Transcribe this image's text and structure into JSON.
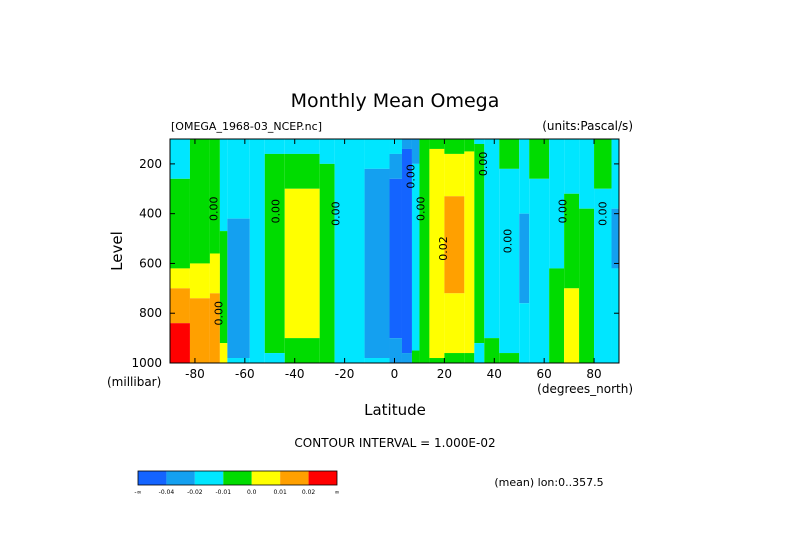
{
  "chart_data": {
    "type": "heatmap",
    "title": "Monthly Mean Omega",
    "subtitle_left": "[OMEGA_1968-03_NCEP.nc]",
    "subtitle_right": "(units:Pascal/s)",
    "xlabel": "Latitude",
    "x_units": "(degrees_north)",
    "ylabel": "Level",
    "y_units": "(millibar)",
    "xlim": [
      -90,
      90
    ],
    "ylim": [
      1000,
      100
    ],
    "xticks": [
      -80,
      -60,
      -40,
      -20,
      0,
      20,
      40,
      60,
      80
    ],
    "xtick_labels": [
      "-80",
      "-60",
      "-40",
      "-20",
      "0",
      "20",
      "40",
      "60",
      "80"
    ],
    "yticks": [
      200,
      400,
      600,
      800,
      1000
    ],
    "ytick_labels": [
      "200",
      "400",
      "600",
      "800",
      "1000"
    ],
    "contour_interval_text": "CONTOUR INTERVAL = 1.000E-02",
    "stats_text": "(mean) lon:0..357.5",
    "contour_labels": [
      {
        "text": "0.00",
        "x": -71,
        "y": 380
      },
      {
        "text": "0.00",
        "x": -46,
        "y": 390
      },
      {
        "text": "0.00",
        "x": -22,
        "y": 400
      },
      {
        "text": "0.00",
        "x": 8,
        "y": 250
      },
      {
        "text": "0.00",
        "x": 12,
        "y": 380
      },
      {
        "text": "0.02",
        "x": 21,
        "y": 540
      },
      {
        "text": "0.00",
        "x": 37,
        "y": 200
      },
      {
        "text": "0.00",
        "x": 47,
        "y": 510
      },
      {
        "text": "0.00",
        "x": 69,
        "y": 390
      },
      {
        "text": "0.00",
        "x": 85,
        "y": 400
      },
      {
        "text": "0.00",
        "x": -69,
        "y": 800
      }
    ],
    "colorbar": {
      "colors": [
        "#1464ff",
        "#14a0f0",
        "#00e6ff",
        "#00dc00",
        "#ffff00",
        "#ffa000",
        "#ff0000"
      ],
      "labels": [
        "-∞",
        "-0.04",
        "-0.02",
        "-0.01",
        "0.0",
        "0.01",
        "0.02",
        "∞"
      ]
    },
    "bands": [
      {
        "lat": [
          -90,
          -82
        ],
        "levels": [
          {
            "p": [
              100,
              260
            ],
            "c": 3
          },
          {
            "p": [
              260,
              620
            ],
            "c": 4
          },
          {
            "p": [
              620,
              700
            ],
            "c": 5
          },
          {
            "p": [
              700,
              840
            ],
            "c": 6
          },
          {
            "p": [
              840,
              1000
            ],
            "c": 7
          }
        ]
      },
      {
        "lat": [
          -82,
          -74
        ],
        "levels": [
          {
            "p": [
              100,
              600
            ],
            "c": 4
          },
          {
            "p": [
              600,
              740
            ],
            "c": 5
          },
          {
            "p": [
              740,
              1000
            ],
            "c": 6
          }
        ]
      },
      {
        "lat": [
          -74,
          -70
        ],
        "levels": [
          {
            "p": [
              100,
              560
            ],
            "c": 4
          },
          {
            "p": [
              560,
              720
            ],
            "c": 5
          },
          {
            "p": [
              720,
              1000
            ],
            "c": 6
          }
        ]
      },
      {
        "lat": [
          -70,
          -67
        ],
        "levels": [
          {
            "p": [
              100,
              470
            ],
            "c": 3
          },
          {
            "p": [
              470,
              920
            ],
            "c": 4
          },
          {
            "p": [
              920,
              1000
            ],
            "c": 5
          }
        ]
      },
      {
        "lat": [
          -67,
          -58
        ],
        "levels": [
          {
            "p": [
              100,
              420
            ],
            "c": 3
          },
          {
            "p": [
              420,
              980
            ],
            "c": 2
          },
          {
            "p": [
              980,
              1000
            ],
            "c": 3
          }
        ]
      },
      {
        "lat": [
          -58,
          -52
        ],
        "levels": [
          {
            "p": [
              100,
              1000
            ],
            "c": 3
          }
        ]
      },
      {
        "lat": [
          -52,
          -44
        ],
        "levels": [
          {
            "p": [
              100,
              160
            ],
            "c": 3
          },
          {
            "p": [
              160,
              960
            ],
            "c": 4
          },
          {
            "p": [
              960,
              1000
            ],
            "c": 3
          }
        ]
      },
      {
        "lat": [
          -44,
          -30
        ],
        "levels": [
          {
            "p": [
              100,
              160
            ],
            "c": 3
          },
          {
            "p": [
              160,
              300
            ],
            "c": 4
          },
          {
            "p": [
              300,
              900
            ],
            "c": 5
          },
          {
            "p": [
              900,
              1000
            ],
            "c": 4
          }
        ]
      },
      {
        "lat": [
          -30,
          -24
        ],
        "levels": [
          {
            "p": [
              100,
              200
            ],
            "c": 3
          },
          {
            "p": [
              200,
              1000
            ],
            "c": 4
          }
        ]
      },
      {
        "lat": [
          -24,
          -12
        ],
        "levels": [
          {
            "p": [
              100,
              1000
            ],
            "c": 3
          }
        ]
      },
      {
        "lat": [
          -12,
          -2
        ],
        "levels": [
          {
            "p": [
              100,
              220
            ],
            "c": 3
          },
          {
            "p": [
              220,
              980
            ],
            "c": 2
          },
          {
            "p": [
              980,
              1000
            ],
            "c": 3
          }
        ]
      },
      {
        "lat": [
          -2,
          3
        ],
        "levels": [
          {
            "p": [
              100,
              160
            ],
            "c": 3
          },
          {
            "p": [
              160,
              260
            ],
            "c": 2
          },
          {
            "p": [
              260,
              900
            ],
            "c": 1
          },
          {
            "p": [
              900,
              1000
            ],
            "c": 2
          }
        ]
      },
      {
        "lat": [
          3,
          7
        ],
        "levels": [
          {
            "p": [
              100,
              140
            ],
            "c": 2
          },
          {
            "p": [
              140,
              960
            ],
            "c": 1
          },
          {
            "p": [
              960,
              1000
            ],
            "c": 2
          }
        ]
      },
      {
        "lat": [
          7,
          10
        ],
        "levels": [
          {
            "p": [
              100,
              200
            ],
            "c": 2
          },
          {
            "p": [
              200,
              950
            ],
            "c": 3
          },
          {
            "p": [
              950,
              1000
            ],
            "c": 4
          }
        ]
      },
      {
        "lat": [
          10,
          14
        ],
        "levels": [
          {
            "p": [
              100,
              1000
            ],
            "c": 4
          }
        ]
      },
      {
        "lat": [
          14,
          20
        ],
        "levels": [
          {
            "p": [
              100,
              140
            ],
            "c": 4
          },
          {
            "p": [
              140,
              980
            ],
            "c": 5
          },
          {
            "p": [
              980,
              1000
            ],
            "c": 4
          }
        ]
      },
      {
        "lat": [
          20,
          28
        ],
        "levels": [
          {
            "p": [
              100,
              160
            ],
            "c": 4
          },
          {
            "p": [
              160,
              330
            ],
            "c": 5
          },
          {
            "p": [
              330,
              720
            ],
            "c": 6
          },
          {
            "p": [
              720,
              960
            ],
            "c": 5
          },
          {
            "p": [
              960,
              1000
            ],
            "c": 4
          }
        ]
      },
      {
        "lat": [
          28,
          32
        ],
        "levels": [
          {
            "p": [
              100,
              150
            ],
            "c": 4
          },
          {
            "p": [
              150,
              960
            ],
            "c": 5
          },
          {
            "p": [
              960,
              1000
            ],
            "c": 4
          }
        ]
      },
      {
        "lat": [
          32,
          36
        ],
        "levels": [
          {
            "p": [
              100,
              120
            ],
            "c": 3
          },
          {
            "p": [
              120,
              920
            ],
            "c": 4
          },
          {
            "p": [
              920,
              1000
            ],
            "c": 3
          }
        ]
      },
      {
        "lat": [
          36,
          42
        ],
        "levels": [
          {
            "p": [
              100,
              900
            ],
            "c": 3
          },
          {
            "p": [
              900,
              1000
            ],
            "c": 4
          }
        ]
      },
      {
        "lat": [
          42,
          50
        ],
        "levels": [
          {
            "p": [
              100,
              220
            ],
            "c": 4
          },
          {
            "p": [
              220,
              960
            ],
            "c": 3
          },
          {
            "p": [
              960,
              1000
            ],
            "c": 4
          }
        ]
      },
      {
        "lat": [
          50,
          54
        ],
        "levels": [
          {
            "p": [
              100,
              400
            ],
            "c": 3
          },
          {
            "p": [
              400,
              760
            ],
            "c": 2
          },
          {
            "p": [
              760,
              1000
            ],
            "c": 3
          }
        ]
      },
      {
        "lat": [
          54,
          62
        ],
        "levels": [
          {
            "p": [
              100,
              260
            ],
            "c": 4
          },
          {
            "p": [
              260,
              1000
            ],
            "c": 3
          }
        ]
      },
      {
        "lat": [
          62,
          68
        ],
        "levels": [
          {
            "p": [
              100,
              620
            ],
            "c": 3
          },
          {
            "p": [
              620,
              1000
            ],
            "c": 4
          }
        ]
      },
      {
        "lat": [
          68,
          74
        ],
        "levels": [
          {
            "p": [
              100,
              320
            ],
            "c": 3
          },
          {
            "p": [
              320,
              700
            ],
            "c": 4
          },
          {
            "p": [
              700,
              1000
            ],
            "c": 5
          }
        ]
      },
      {
        "lat": [
          74,
          80
        ],
        "levels": [
          {
            "p": [
              100,
              380
            ],
            "c": 3
          },
          {
            "p": [
              380,
              1000
            ],
            "c": 4
          }
        ]
      },
      {
        "lat": [
          80,
          87
        ],
        "levels": [
          {
            "p": [
              100,
              300
            ],
            "c": 4
          },
          {
            "p": [
              300,
              1000
            ],
            "c": 3
          }
        ]
      },
      {
        "lat": [
          87,
          90
        ],
        "levels": [
          {
            "p": [
              100,
              380
            ],
            "c": 3
          },
          {
            "p": [
              380,
              620
            ],
            "c": 2
          },
          {
            "p": [
              620,
              1000
            ],
            "c": 3
          }
        ]
      }
    ],
    "grid": false,
    "legend_position": "bottom-left"
  }
}
